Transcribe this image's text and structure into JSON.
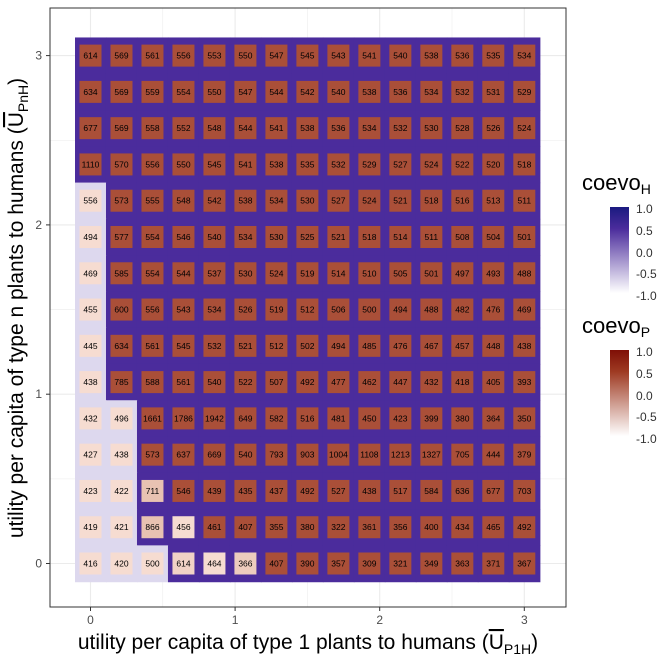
{
  "chart_data": {
    "type": "heatmap",
    "xlabel": "utility per capita of type 1 plants to humans (U̅P1H)",
    "ylabel": "utility per capita of type n plants to humans (U̅PnH)",
    "xlabel_parts": {
      "main": "utility per capita of type 1 plants to humans (",
      "symbol": "U",
      "subscript": "P1H",
      "close": ")"
    },
    "ylabel_parts": {
      "main": "utility per capita of type n plants to humans (",
      "symbol": "U",
      "subscript": "PnH",
      "close": ")"
    },
    "x_ticks": [
      0,
      1,
      2,
      3
    ],
    "y_ticks": [
      0,
      1,
      2,
      3
    ],
    "x_values": [
      0,
      0.2142857,
      0.4285714,
      0.6428571,
      0.8571429,
      1.0714286,
      1.2857143,
      1.5,
      1.7142857,
      1.9285714,
      2.1428571,
      2.3571429,
      2.5714286,
      2.7857143,
      3.0
    ],
    "y_values": [
      0,
      0.2142857,
      0.4285714,
      0.6428571,
      0.8571429,
      1.0714286,
      1.2857143,
      1.5,
      1.7142857,
      1.9285714,
      2.1428571,
      2.3571429,
      2.5714286,
      2.7857143,
      3.0
    ],
    "xlim": [
      -0.25,
      3.25
    ],
    "ylim": [
      -0.25,
      3.25
    ],
    "grid": true,
    "rows_top_to_bottom": [
      [
        614,
        569,
        561,
        556,
        553,
        550,
        547,
        545,
        543,
        541,
        540,
        538,
        536,
        535,
        534
      ],
      [
        634,
        569,
        559,
        554,
        550,
        547,
        544,
        542,
        540,
        538,
        536,
        534,
        532,
        531,
        529
      ],
      [
        677,
        569,
        558,
        552,
        548,
        544,
        541,
        538,
        536,
        534,
        532,
        530,
        528,
        526,
        524
      ],
      [
        1110,
        570,
        556,
        550,
        545,
        541,
        538,
        535,
        532,
        529,
        527,
        524,
        522,
        520,
        518
      ],
      [
        556,
        573,
        555,
        548,
        542,
        538,
        534,
        530,
        527,
        524,
        521,
        518,
        516,
        513,
        511
      ],
      [
        494,
        577,
        554,
        546,
        540,
        534,
        530,
        525,
        521,
        518,
        514,
        511,
        508,
        504,
        501
      ],
      [
        469,
        585,
        554,
        544,
        537,
        530,
        524,
        519,
        514,
        510,
        505,
        501,
        497,
        493,
        488
      ],
      [
        455,
        600,
        556,
        543,
        534,
        526,
        519,
        512,
        506,
        500,
        494,
        488,
        482,
        476,
        469
      ],
      [
        445,
        634,
        561,
        545,
        532,
        521,
        512,
        502,
        494,
        485,
        476,
        467,
        457,
        448,
        438
      ],
      [
        438,
        785,
        588,
        561,
        540,
        522,
        507,
        492,
        477,
        462,
        447,
        432,
        418,
        405,
        393
      ],
      [
        432,
        496,
        1661,
        1786,
        1942,
        649,
        582,
        516,
        481,
        450,
        423,
        399,
        380,
        364,
        350
      ],
      [
        427,
        438,
        573,
        637,
        669,
        540,
        793,
        903,
        1004,
        1108,
        1213,
        1327,
        705,
        444,
        379
      ],
      [
        423,
        422,
        711,
        546,
        439,
        435,
        437,
        492,
        527,
        438,
        517,
        584,
        636,
        677,
        703
      ],
      [
        419,
        421,
        866,
        456,
        461,
        407,
        355,
        380,
        322,
        361,
        356,
        400,
        434,
        465,
        492
      ],
      [
        416,
        420,
        500,
        614,
        464,
        366,
        407,
        390,
        357,
        309,
        321,
        349,
        363,
        371,
        367
      ]
    ],
    "coevo_H_top_to_bottom": [
      [
        1,
        1,
        1,
        1,
        1,
        1,
        1,
        1,
        1,
        1,
        1,
        1,
        1,
        1,
        1
      ],
      [
        1,
        1,
        1,
        1,
        1,
        1,
        1,
        1,
        1,
        1,
        1,
        1,
        1,
        1,
        1
      ],
      [
        1,
        1,
        1,
        1,
        1,
        1,
        1,
        1,
        1,
        1,
        1,
        1,
        1,
        1,
        1
      ],
      [
        1,
        1,
        1,
        1,
        1,
        1,
        1,
        1,
        1,
        1,
        1,
        1,
        1,
        1,
        1
      ],
      [
        -1,
        1,
        1,
        1,
        1,
        1,
        1,
        1,
        1,
        1,
        1,
        1,
        1,
        1,
        1
      ],
      [
        -1,
        1,
        1,
        1,
        1,
        1,
        1,
        1,
        1,
        1,
        1,
        1,
        1,
        1,
        1
      ],
      [
        -1,
        1,
        1,
        1,
        1,
        1,
        1,
        1,
        1,
        1,
        1,
        1,
        1,
        1,
        1
      ],
      [
        -1,
        1,
        1,
        1,
        1,
        1,
        1,
        1,
        1,
        1,
        1,
        1,
        1,
        1,
        1
      ],
      [
        -1,
        1,
        1,
        1,
        1,
        1,
        1,
        1,
        1,
        1,
        1,
        1,
        1,
        1,
        1
      ],
      [
        -1,
        1,
        1,
        1,
        1,
        1,
        1,
        1,
        1,
        1,
        1,
        1,
        1,
        1,
        1
      ],
      [
        -1,
        -1,
        1,
        1,
        1,
        1,
        1,
        1,
        1,
        1,
        1,
        1,
        1,
        1,
        1
      ],
      [
        -1,
        -1,
        1,
        1,
        1,
        1,
        1,
        1,
        1,
        1,
        1,
        1,
        1,
        1,
        1
      ],
      [
        -1,
        -1,
        1,
        1,
        1,
        1,
        1,
        1,
        1,
        1,
        1,
        1,
        1,
        1,
        1
      ],
      [
        -1,
        -1,
        1,
        1,
        1,
        1,
        1,
        1,
        1,
        1,
        1,
        1,
        1,
        1,
        1
      ],
      [
        -1,
        -1,
        -1,
        1,
        1,
        1,
        1,
        1,
        1,
        1,
        1,
        1,
        1,
        1,
        1
      ]
    ],
    "coevo_P_top_to_bottom": [
      [
        0.8,
        0.8,
        0.8,
        0.8,
        0.8,
        0.8,
        0.8,
        0.8,
        0.8,
        0.8,
        0.8,
        0.8,
        0.8,
        0.8,
        0.8
      ],
      [
        0.8,
        0.8,
        0.8,
        0.8,
        0.8,
        0.8,
        0.8,
        0.8,
        0.8,
        0.8,
        0.8,
        0.8,
        0.8,
        0.8,
        0.8
      ],
      [
        0.8,
        0.8,
        0.8,
        0.8,
        0.8,
        0.8,
        0.8,
        0.8,
        0.8,
        0.8,
        0.8,
        0.8,
        0.8,
        0.8,
        0.8
      ],
      [
        0.8,
        0.8,
        0.8,
        0.8,
        0.8,
        0.8,
        0.8,
        0.8,
        0.8,
        0.8,
        0.8,
        0.8,
        0.8,
        0.8,
        0.8
      ],
      [
        -0.85,
        0.8,
        0.8,
        0.8,
        0.8,
        0.8,
        0.8,
        0.8,
        0.8,
        0.8,
        0.8,
        0.8,
        0.8,
        0.8,
        0.8
      ],
      [
        -0.85,
        0.8,
        0.8,
        0.8,
        0.8,
        0.8,
        0.8,
        0.8,
        0.8,
        0.8,
        0.8,
        0.8,
        0.8,
        0.8,
        0.8
      ],
      [
        -0.85,
        0.8,
        0.8,
        0.8,
        0.8,
        0.8,
        0.8,
        0.8,
        0.8,
        0.8,
        0.8,
        0.8,
        0.8,
        0.8,
        0.8
      ],
      [
        -0.85,
        0.8,
        0.8,
        0.8,
        0.8,
        0.8,
        0.8,
        0.8,
        0.8,
        0.8,
        0.8,
        0.8,
        0.8,
        0.8,
        0.8
      ],
      [
        -0.85,
        0.8,
        0.8,
        0.8,
        0.8,
        0.8,
        0.8,
        0.8,
        0.8,
        0.8,
        0.8,
        0.8,
        0.8,
        0.8,
        0.8
      ],
      [
        -0.85,
        0.8,
        0.8,
        0.8,
        0.8,
        0.8,
        0.8,
        0.8,
        0.8,
        0.8,
        0.8,
        0.8,
        0.8,
        0.8,
        0.8
      ],
      [
        -0.85,
        -0.85,
        0.8,
        0.8,
        0.8,
        0.8,
        0.8,
        0.8,
        0.8,
        0.8,
        0.8,
        0.8,
        0.8,
        0.8,
        0.8
      ],
      [
        -0.85,
        -0.85,
        0.8,
        0.8,
        0.8,
        0.8,
        0.8,
        0.8,
        0.8,
        0.8,
        0.8,
        0.8,
        0.8,
        0.8,
        0.8
      ],
      [
        -0.85,
        -0.85,
        -0.45,
        0.8,
        0.8,
        0.8,
        0.8,
        0.8,
        0.8,
        0.8,
        0.8,
        0.8,
        0.8,
        0.8,
        0.8
      ],
      [
        -0.85,
        -0.85,
        -0.45,
        -0.85,
        0.8,
        0.8,
        0.8,
        0.8,
        0.8,
        0.8,
        0.8,
        0.8,
        0.8,
        0.8,
        0.8
      ],
      [
        -0.85,
        -0.85,
        -0.85,
        -0.7,
        -0.85,
        -0.6,
        0.8,
        0.8,
        0.8,
        0.8,
        0.8,
        0.8,
        0.8,
        0.8,
        0.8
      ]
    ],
    "legends": [
      {
        "title": "coevo",
        "subscript": "H",
        "ticks": [
          "1.0",
          "0.5",
          "0.0",
          "-0.5",
          "-1.0"
        ],
        "color_high": "#1a1a80",
        "color_low": "#ffffff"
      },
      {
        "title": "coevo",
        "subscript": "P",
        "ticks": [
          "1.0",
          "0.5",
          "0.0",
          "-0.5",
          "-1.0"
        ],
        "color_high": "#7f0f06",
        "color_low": "#ffffff"
      }
    ],
    "colors": {
      "H_high": "#4b2c9c",
      "H_low": "#ddd8ee",
      "P_high": "#9e3a22",
      "P_mid": "#d8a48f",
      "P_low": "#fbe6dd",
      "panel_border": "#333333",
      "grid": "#ebebeb"
    }
  }
}
